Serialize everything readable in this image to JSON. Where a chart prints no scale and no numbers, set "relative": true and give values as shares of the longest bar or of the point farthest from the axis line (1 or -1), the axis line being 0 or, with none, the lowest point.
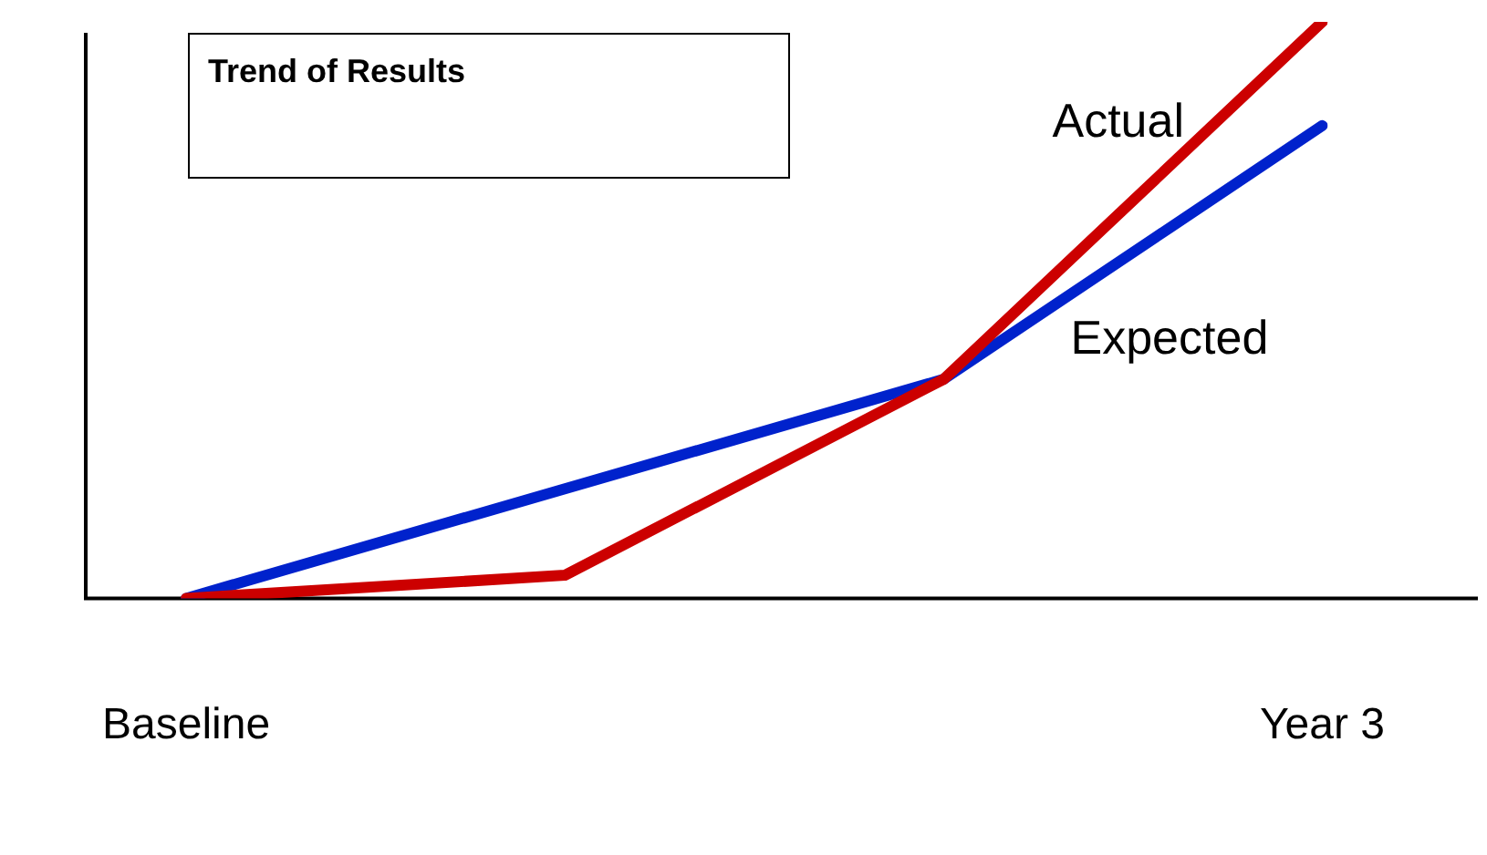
{
  "chart_data": {
    "type": "line",
    "title": "Trend of Results",
    "relative": true,
    "categories": [
      "Baseline",
      null,
      null,
      "Year 3"
    ],
    "series": [
      {
        "name": "Actual",
        "color": "#cc0000",
        "values": [
          0,
          0.04,
          0.38,
          1
        ]
      },
      {
        "name": "Expected",
        "color": "#0022cc",
        "values": [
          0,
          0.19,
          0.38,
          0.82
        ]
      }
    ],
    "legend": false,
    "grid": false,
    "marker": "none",
    "line_style": "solid"
  }
}
